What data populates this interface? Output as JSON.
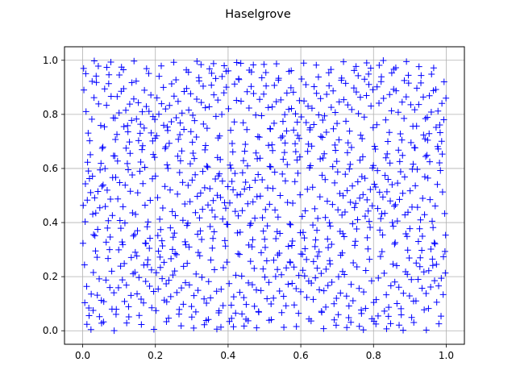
{
  "chart_data": {
    "type": "scatter",
    "title": "Haselgrove",
    "xlabel": "",
    "ylabel": "",
    "xlim": [
      -0.05,
      1.05
    ],
    "ylim": [
      -0.05,
      1.05
    ],
    "xticks": [
      0.0,
      0.2,
      0.4,
      0.6,
      0.8,
      1.0
    ],
    "yticks": [
      0.0,
      0.2,
      0.4,
      0.6,
      0.8,
      1.0
    ],
    "xtick_labels": [
      "0.0",
      "0.2",
      "0.4",
      "0.6",
      "0.8",
      "1.0"
    ],
    "ytick_labels": [
      "0.0",
      "0.2",
      "0.4",
      "0.6",
      "0.8",
      "1.0"
    ],
    "grid": true,
    "marker": "+",
    "color": "#0000ff",
    "sequence": {
      "generator": "haselgrove",
      "n_points": 1000,
      "alpha": [
        0.4142135623730951,
        0.7320508075688772
      ],
      "x_range": [
        0,
        1
      ],
      "y_range": [
        0,
        1
      ]
    }
  }
}
